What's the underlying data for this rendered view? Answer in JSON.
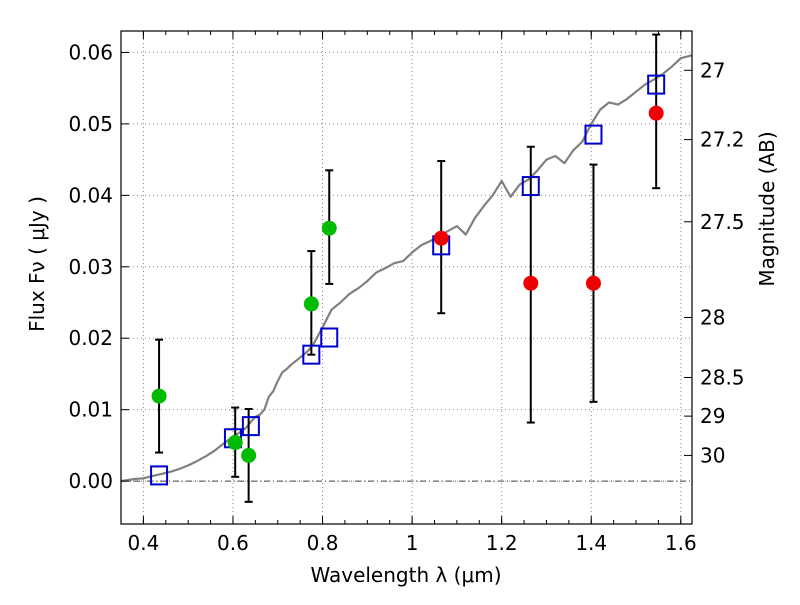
{
  "chart_data": {
    "type": "scatter",
    "xlabel": "Wavelength  λ (μm)",
    "ylabel": "Flux  Fν  ( μJy )",
    "y2label": "Magnitude (AB)",
    "xlim": [
      0.35,
      1.625
    ],
    "ylim": [
      -0.006,
      0.063
    ],
    "grid": true,
    "x_ticks": [
      0.4,
      0.6,
      0.8,
      1.0,
      1.2,
      1.4,
      1.6
    ],
    "x_tick_labels": [
      "0.4",
      "0.6",
      "0.8",
      "1",
      "1.2",
      "1.4",
      "1.6"
    ],
    "y_ticks": [
      0.0,
      0.01,
      0.02,
      0.03,
      0.04,
      0.05,
      0.06
    ],
    "y_tick_labels": [
      "0.00",
      "0.01",
      "0.02",
      "0.03",
      "0.04",
      "0.05",
      "0.06"
    ],
    "y2_ticks": [
      {
        "label": "27",
        "flux": 0.0575
      },
      {
        "label": "27.2",
        "flux": 0.0478
      },
      {
        "label": "27.5",
        "flux": 0.0363
      },
      {
        "label": "28",
        "flux": 0.0229
      },
      {
        "label": "28.5",
        "flux": 0.0145
      },
      {
        "label": "29",
        "flux": 0.0091
      },
      {
        "label": "30",
        "flux": 0.0036
      }
    ],
    "zero_line": 0.0,
    "colors": {
      "model": "#808080",
      "green": "#00bb00",
      "red": "#ee0000",
      "square": "#0000cc",
      "error": "#000000",
      "grid": "#888888"
    },
    "model_spectrum": {
      "x": [
        0.35,
        0.38,
        0.4,
        0.42,
        0.44,
        0.46,
        0.48,
        0.5,
        0.52,
        0.54,
        0.56,
        0.58,
        0.6,
        0.62,
        0.63,
        0.64,
        0.65,
        0.66,
        0.67,
        0.68,
        0.69,
        0.7,
        0.71,
        0.72,
        0.73,
        0.74,
        0.75,
        0.76,
        0.77,
        0.78,
        0.8,
        0.82,
        0.84,
        0.86,
        0.88,
        0.9,
        0.92,
        0.94,
        0.96,
        0.98,
        1.0,
        1.02,
        1.04,
        1.06,
        1.08,
        1.1,
        1.12,
        1.14,
        1.16,
        1.18,
        1.2,
        1.22,
        1.24,
        1.26,
        1.28,
        1.3,
        1.32,
        1.34,
        1.36,
        1.38,
        1.4,
        1.42,
        1.44,
        1.46,
        1.48,
        1.5,
        1.52,
        1.54,
        1.56,
        1.58,
        1.6,
        1.625
      ],
      "y": [
        0.0,
        0.0003,
        0.0004,
        0.0007,
        0.001,
        0.0013,
        0.0017,
        0.0022,
        0.0028,
        0.0035,
        0.0043,
        0.0053,
        0.0062,
        0.007,
        0.0075,
        0.0083,
        0.009,
        0.0093,
        0.01,
        0.0118,
        0.0126,
        0.014,
        0.0152,
        0.0157,
        0.0163,
        0.0168,
        0.0173,
        0.0178,
        0.0184,
        0.0192,
        0.0215,
        0.024,
        0.025,
        0.0262,
        0.027,
        0.028,
        0.0292,
        0.0298,
        0.0305,
        0.0308,
        0.032,
        0.033,
        0.0336,
        0.0342,
        0.035,
        0.0357,
        0.0345,
        0.0368,
        0.0385,
        0.04,
        0.042,
        0.0398,
        0.0415,
        0.0422,
        0.0435,
        0.045,
        0.0455,
        0.0445,
        0.0463,
        0.0475,
        0.05,
        0.052,
        0.053,
        0.0527,
        0.0535,
        0.0545,
        0.0555,
        0.0562,
        0.057,
        0.058,
        0.0592,
        0.0596
      ]
    },
    "green_points": [
      {
        "x": 0.435,
        "y": 0.0119,
        "ylo": 0.004,
        "yhi": 0.0198
      },
      {
        "x": 0.605,
        "y": 0.0054,
        "ylo": 0.0006,
        "yhi": 0.0103
      },
      {
        "x": 0.635,
        "y": 0.0036,
        "ylo": -0.0029,
        "yhi": 0.0101
      },
      {
        "x": 0.775,
        "y": 0.0248,
        "ylo": 0.0177,
        "yhi": 0.0322
      },
      {
        "x": 0.815,
        "y": 0.0354,
        "ylo": 0.0276,
        "yhi": 0.0435
      }
    ],
    "red_points": [
      {
        "x": 1.065,
        "y": 0.034,
        "ylo": 0.0235,
        "yhi": 0.0448
      },
      {
        "x": 1.265,
        "y": 0.0277,
        "ylo": 0.0082,
        "yhi": 0.0468
      },
      {
        "x": 1.405,
        "y": 0.0277,
        "ylo": 0.0111,
        "yhi": 0.0443
      },
      {
        "x": 1.545,
        "y": 0.0515,
        "ylo": 0.041,
        "yhi": 0.0625
      }
    ],
    "model_squares": [
      {
        "x": 0.435,
        "y": 0.0008
      },
      {
        "x": 0.6,
        "y": 0.006
      },
      {
        "x": 0.64,
        "y": 0.0077
      },
      {
        "x": 0.775,
        "y": 0.0177
      },
      {
        "x": 0.815,
        "y": 0.0201
      },
      {
        "x": 1.065,
        "y": 0.033
      },
      {
        "x": 1.265,
        "y": 0.0413
      },
      {
        "x": 1.405,
        "y": 0.0485
      },
      {
        "x": 1.545,
        "y": 0.0555
      }
    ]
  }
}
